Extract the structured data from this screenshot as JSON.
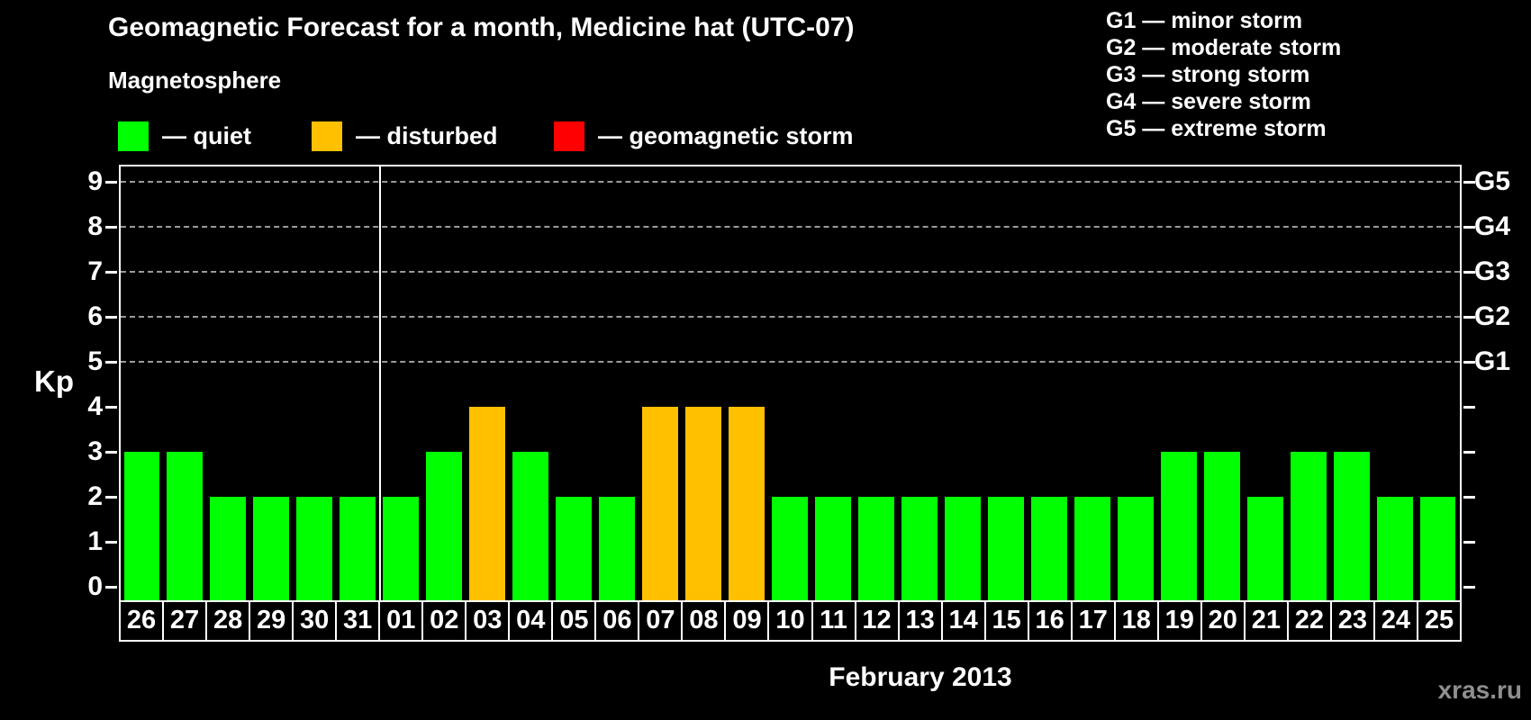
{
  "header": {
    "title": "Geomagnetic Forecast for a month, Medicine hat (UTC-07)",
    "subtitle": "Magnetosphere"
  },
  "legend": {
    "items": [
      {
        "key": "quiet",
        "label": "— quiet",
        "color": "#00ff00"
      },
      {
        "key": "disturbed",
        "label": "— disturbed",
        "color": "#ffc000"
      },
      {
        "key": "storm",
        "label": "— geomagnetic storm",
        "color": "#ff0000"
      }
    ]
  },
  "g_scale_legend": {
    "items": [
      "G1 — minor storm",
      "G2 — moderate storm",
      "G3 — strong storm",
      "G4 — severe storm",
      "G5 — extreme storm"
    ]
  },
  "chart_data": {
    "type": "bar",
    "title": "Geomagnetic Forecast for a month, Medicine hat (UTC-07)",
    "ylabel": "Kp",
    "xlabel": "February 2013",
    "ylim": [
      0,
      9
    ],
    "yticks": [
      0,
      1,
      2,
      3,
      4,
      5,
      6,
      7,
      8,
      9
    ],
    "gridlines_at": [
      5,
      6,
      7,
      8,
      9
    ],
    "grid": "dashed-horizontal",
    "legend_position": "top-left",
    "categories": [
      "26",
      "27",
      "28",
      "29",
      "30",
      "31",
      "01",
      "02",
      "03",
      "04",
      "05",
      "06",
      "07",
      "08",
      "09",
      "10",
      "11",
      "12",
      "13",
      "14",
      "15",
      "16",
      "17",
      "18",
      "19",
      "20",
      "21",
      "22",
      "23",
      "24",
      "25"
    ],
    "values": [
      3,
      3,
      2,
      2,
      2,
      2,
      2,
      3,
      4,
      3,
      2,
      2,
      4,
      4,
      4,
      2,
      2,
      2,
      2,
      2,
      2,
      2,
      2,
      2,
      3,
      3,
      2,
      3,
      3,
      2,
      2
    ],
    "statuses": [
      "quiet",
      "quiet",
      "quiet",
      "quiet",
      "quiet",
      "quiet",
      "quiet",
      "quiet",
      "disturbed",
      "quiet",
      "quiet",
      "quiet",
      "disturbed",
      "disturbed",
      "disturbed",
      "quiet",
      "quiet",
      "quiet",
      "quiet",
      "quiet",
      "quiet",
      "quiet",
      "quiet",
      "quiet",
      "quiet",
      "quiet",
      "quiet",
      "quiet",
      "quiet",
      "quiet",
      "quiet"
    ],
    "colors": {
      "quiet": "#00ff00",
      "disturbed": "#ffc000",
      "storm": "#ff0000"
    },
    "right_axis_labels": [
      {
        "kp": 5,
        "label": "G1"
      },
      {
        "kp": 6,
        "label": "G2"
      },
      {
        "kp": 7,
        "label": "G3"
      },
      {
        "kp": 8,
        "label": "G4"
      },
      {
        "kp": 9,
        "label": "G5"
      }
    ],
    "month_separator_after_index": 5
  },
  "footer": {
    "month_label": "February 2013",
    "watermark": "xras.ru"
  }
}
